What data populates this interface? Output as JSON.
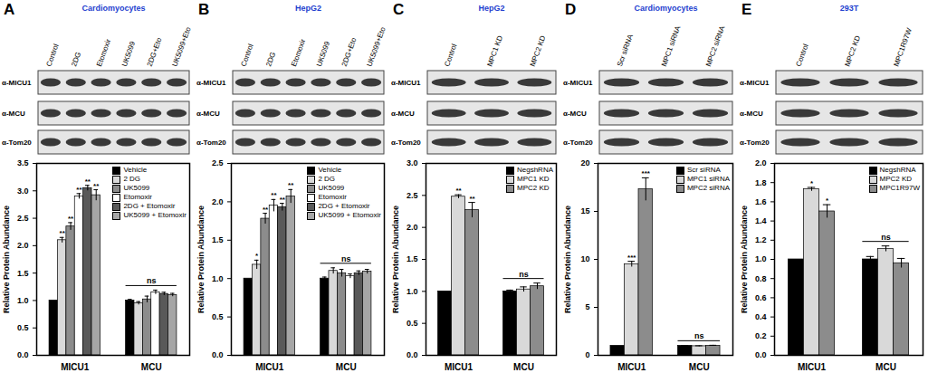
{
  "chart_data": [
    {
      "type": "bar",
      "panel_label": "A",
      "title": "Cardiomyocytes",
      "blot": {
        "lanes": [
          "Control",
          "2DG",
          "Etomoxir",
          "UK5099",
          "2DG+Eto",
          "UK5099+Eto"
        ],
        "antibodies": [
          "α-MICU1",
          "α-MCU",
          "α-Tom20"
        ]
      },
      "categories": [
        "MICU1",
        "MCU"
      ],
      "y_label": "Relative Protein Abundance",
      "ylim": [
        0,
        3.5
      ],
      "yticks": [
        {
          "value": 0,
          "label": "0.0"
        },
        0.5,
        {
          "value": 1,
          "label": "1.0"
        },
        1.5,
        {
          "value": 2,
          "label": "2.0"
        },
        2.5,
        {
          "value": 3,
          "label": "3.0"
        },
        3.5
      ],
      "legend": "top-right",
      "series": [
        {
          "name": "Vehicle",
          "color": "#000000",
          "values": [
            1.0,
            1.0
          ],
          "errors": [
            0,
            0.02
          ],
          "significance": [
            null,
            null
          ]
        },
        {
          "name": "2 DG",
          "color": "#d9d9d9",
          "values": [
            2.1,
            0.95
          ],
          "errors": [
            0.05,
            0.03
          ],
          "significance": [
            "**",
            null
          ]
        },
        {
          "name": "UK5099",
          "color": "#8c8c8c",
          "values": [
            2.35,
            1.02
          ],
          "errors": [
            0.07,
            0.06
          ],
          "significance": [
            "**",
            null
          ]
        },
        {
          "name": "Etomoxir",
          "color": "#ffffff",
          "values": [
            2.9,
            1.15
          ],
          "errors": [
            0.05,
            0.04
          ],
          "significance": [
            "**",
            null
          ]
        },
        {
          "name": "2DG + Etomoxir",
          "color": "#595959",
          "values": [
            3.05,
            1.12
          ],
          "errors": [
            0.05,
            0.03
          ],
          "significance": [
            "**",
            null
          ]
        },
        {
          "name": "UK5099 + Etomoxir",
          "color": "#a6a6a6",
          "values": [
            2.92,
            1.1
          ],
          "errors": [
            0.1,
            0.03
          ],
          "significance": [
            "**",
            null
          ]
        }
      ],
      "annotations": [
        {
          "category": "MCU",
          "text": "ns"
        }
      ]
    },
    {
      "type": "bar",
      "panel_label": "B",
      "title": "HepG2",
      "blot": {
        "lanes": [
          "Control",
          "2DG",
          "Etomoxir",
          "UK5099",
          "2DG+Eto",
          "UK5099+Eto"
        ],
        "antibodies": [
          "α-MICU1",
          "α-MCU",
          "α-Tom20"
        ]
      },
      "categories": [
        "MICU1",
        "MCU"
      ],
      "y_label": "Relative Protein Abundance",
      "ylim": [
        0,
        2.5
      ],
      "yticks": [
        {
          "value": 0,
          "label": "0.0"
        },
        0.5,
        {
          "value": 1,
          "label": "1.0"
        },
        1.5,
        {
          "value": 2,
          "label": "2.0"
        },
        2.5
      ],
      "legend": "top-right",
      "series": [
        {
          "name": "Vehicle",
          "color": "#000000",
          "values": [
            1.0,
            1.0
          ],
          "errors": [
            0,
            0.02
          ],
          "significance": [
            null,
            null
          ]
        },
        {
          "name": "2 DG",
          "color": "#d9d9d9",
          "values": [
            1.18,
            1.1
          ],
          "errors": [
            0.06,
            0.04
          ],
          "significance": [
            "*",
            null
          ]
        },
        {
          "name": "UK5099",
          "color": "#8c8c8c",
          "values": [
            1.78,
            1.07
          ],
          "errors": [
            0.07,
            0.05
          ],
          "significance": [
            "**",
            null
          ]
        },
        {
          "name": "Etomoxir",
          "color": "#ffffff",
          "values": [
            1.95,
            1.03
          ],
          "errors": [
            0.08,
            0.03
          ],
          "significance": [
            "**",
            null
          ]
        },
        {
          "name": "2DG + Etomoxir",
          "color": "#595959",
          "values": [
            1.93,
            1.07
          ],
          "errors": [
            0.05,
            0.03
          ],
          "significance": [
            "**",
            null
          ]
        },
        {
          "name": "UK5099 + Etomoxir",
          "color": "#a6a6a6",
          "values": [
            2.07,
            1.09
          ],
          "errors": [
            0.09,
            0.03
          ],
          "significance": [
            "**",
            null
          ]
        }
      ],
      "annotations": [
        {
          "category": "MCU",
          "text": "ns"
        }
      ]
    },
    {
      "type": "bar",
      "panel_label": "C",
      "title": "HepG2",
      "blot": {
        "lanes": [
          "Control",
          "MPC1 KD",
          "MPC2 KD"
        ],
        "antibodies": [
          "α-MICU1",
          "α-MCU",
          "α-Tom20"
        ]
      },
      "categories": [
        "MICU1",
        "MCU"
      ],
      "y_label": "Relative Protein Abundance",
      "ylim": [
        0,
        3.0
      ],
      "yticks": [
        {
          "value": 0,
          "label": "0.0"
        },
        0.5,
        {
          "value": 1,
          "label": "1.0"
        },
        1.5,
        {
          "value": 2,
          "label": "2.0"
        },
        2.5,
        {
          "value": 3,
          "label": "3.0"
        }
      ],
      "legend": "top-right",
      "series": [
        {
          "name": "NegshRNA",
          "color": "#000000",
          "values": [
            1.0,
            1.0
          ],
          "errors": [
            0,
            0.02
          ],
          "significance": [
            null,
            null
          ]
        },
        {
          "name": "MPC1 KD",
          "color": "#d9d9d9",
          "values": [
            2.48,
            1.03
          ],
          "errors": [
            0.03,
            0.04
          ],
          "significance": [
            "**",
            null
          ]
        },
        {
          "name": "MPC2 KD",
          "color": "#8c8c8c",
          "values": [
            2.27,
            1.08
          ],
          "errors": [
            0.12,
            0.05
          ],
          "significance": [
            "**",
            null
          ]
        }
      ],
      "annotations": [
        {
          "category": "MCU",
          "text": "ns"
        }
      ]
    },
    {
      "type": "bar",
      "panel_label": "D",
      "title": "Cardiomyocytes",
      "blot": {
        "lanes": [
          "Scr siRNA",
          "MPC1 siRNA",
          "MPC2 siRNA"
        ],
        "antibodies": [
          "α-MICU1",
          "α-MCU",
          "α-Tom20"
        ]
      },
      "categories": [
        "MICU1",
        "MCU"
      ],
      "y_label": "Relative Protein Abundance",
      "ylim": [
        0,
        20
      ],
      "yticks": [
        0,
        5,
        10,
        15,
        20
      ],
      "legend": "top-right",
      "series": [
        {
          "name": "Scr siRNA",
          "color": "#000000",
          "values": [
            1.0,
            1.0
          ],
          "errors": [
            0,
            0.02
          ],
          "significance": [
            null,
            null
          ]
        },
        {
          "name": "MPC1 siRNA",
          "color": "#d9d9d9",
          "values": [
            9.5,
            0.95
          ],
          "errors": [
            0.3,
            0.05
          ],
          "significance": [
            "***",
            null
          ]
        },
        {
          "name": "MPC2 siRNA",
          "color": "#8c8c8c",
          "values": [
            17.3,
            1.0
          ],
          "errors": [
            1.2,
            0.05
          ],
          "significance": [
            "***",
            null
          ]
        }
      ],
      "annotations": [
        {
          "category": "MCU",
          "text": "ns"
        }
      ]
    },
    {
      "type": "bar",
      "panel_label": "E",
      "title": "293T",
      "blot": {
        "lanes": [
          "Control",
          "MPC2 KD",
          "MPC1R97W"
        ],
        "antibodies": [
          "α-MICU1",
          "α-MCU",
          "α-Tom20"
        ]
      },
      "categories": [
        "MICU1",
        "MCU"
      ],
      "y_label": "Relative Protein Abundance",
      "ylim": [
        0,
        2.0
      ],
      "yticks": [
        {
          "value": 0,
          "label": "0.0"
        },
        0.2,
        0.4,
        0.6,
        0.8,
        {
          "value": 1,
          "label": "1.0"
        },
        1.2,
        1.4,
        1.6,
        1.8,
        {
          "value": 2,
          "label": "2.0"
        }
      ],
      "legend": "top-right",
      "series": [
        {
          "name": "NegshRNA",
          "color": "#000000",
          "values": [
            1.0,
            1.0
          ],
          "errors": [
            0,
            0.03
          ],
          "significance": [
            null,
            null
          ]
        },
        {
          "name": "MPC2 KD",
          "color": "#d9d9d9",
          "values": [
            1.73,
            1.11
          ],
          "errors": [
            0.02,
            0.03
          ],
          "significance": [
            "*",
            null
          ]
        },
        {
          "name": "MPC1R97W",
          "color": "#8c8c8c",
          "values": [
            1.5,
            0.96
          ],
          "errors": [
            0.07,
            0.05
          ],
          "significance": [
            "*",
            null
          ]
        }
      ],
      "annotations": [
        {
          "category": "MCU",
          "text": "ns"
        }
      ]
    }
  ]
}
